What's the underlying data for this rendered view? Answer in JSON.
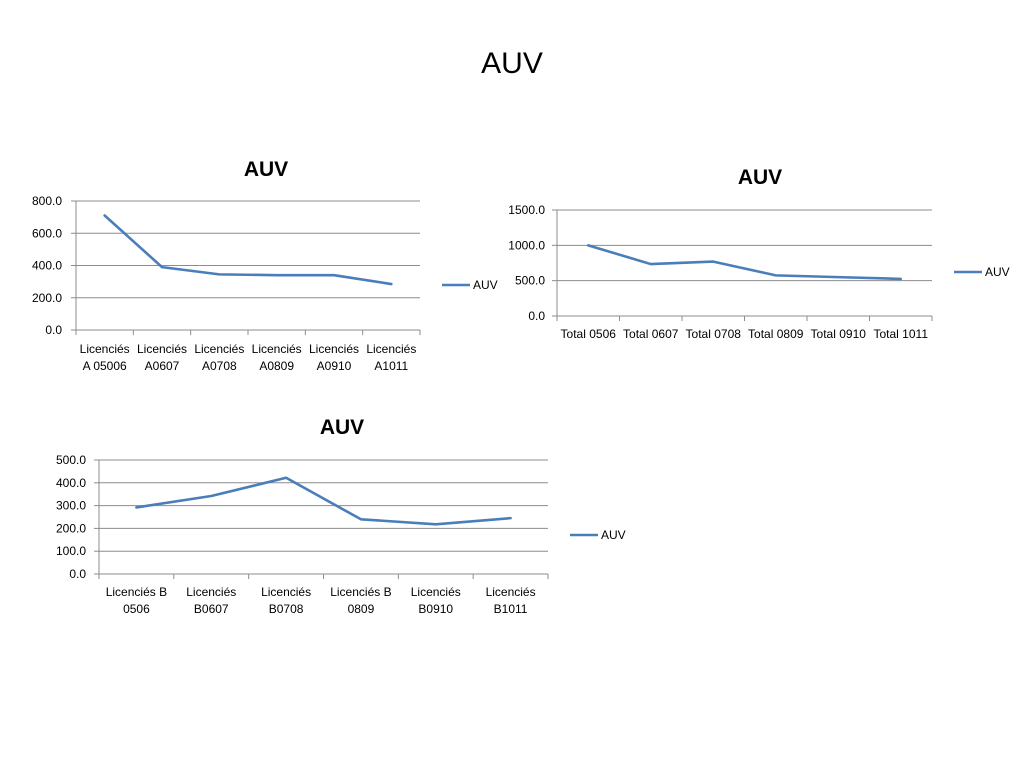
{
  "slide_title": "AUV",
  "chart_data": [
    {
      "type": "line",
      "title": "AUV",
      "categories": [
        [
          "Licenciés",
          "A 05006"
        ],
        [
          "Licenciés",
          "A0607"
        ],
        [
          "Licenciés",
          "A0708"
        ],
        [
          "Licenciés",
          "A0809"
        ],
        [
          "Licenciés",
          "A0910"
        ],
        [
          "Licenciés",
          "A1011"
        ]
      ],
      "series": [
        {
          "name": "AUV",
          "values": [
            710,
            390,
            345,
            340,
            340,
            285
          ]
        }
      ],
      "ylim": [
        0,
        800
      ],
      "yticks": [
        "0.0",
        "200.0",
        "400.0",
        "600.0",
        "800.0"
      ],
      "grid": true,
      "legend": "right",
      "color": "#4a7ebb"
    },
    {
      "type": "line",
      "title": "AUV",
      "categories": [
        [
          "Total 0506"
        ],
        [
          "Total 0607"
        ],
        [
          "Total 0708"
        ],
        [
          "Total 0809"
        ],
        [
          "Total 0910"
        ],
        [
          "Total 1011"
        ]
      ],
      "series": [
        {
          "name": "AUV",
          "values": [
            1000,
            735,
            770,
            575,
            550,
            525
          ]
        }
      ],
      "ylim": [
        0,
        1500
      ],
      "yticks": [
        "0.0",
        "500.0",
        "1000.0",
        "1500.0"
      ],
      "grid": true,
      "legend": "right",
      "color": "#4a7ebb"
    },
    {
      "type": "line",
      "title": "AUV",
      "categories": [
        [
          "Licenciés B",
          "0506"
        ],
        [
          "Licenciés",
          "B0607"
        ],
        [
          "Licenciés",
          "B0708"
        ],
        [
          "Licenciés B",
          "0809"
        ],
        [
          "Licenciés",
          "B0910"
        ],
        [
          "Licenciés",
          "B1011"
        ]
      ],
      "series": [
        {
          "name": "AUV",
          "values": [
            292,
            342,
            422,
            240,
            218,
            245
          ]
        }
      ],
      "ylim": [
        0,
        500
      ],
      "yticks": [
        "0.0",
        "100.0",
        "200.0",
        "300.0",
        "400.0",
        "500.0"
      ],
      "grid": true,
      "legend": "right",
      "color": "#4a7ebb"
    }
  ]
}
